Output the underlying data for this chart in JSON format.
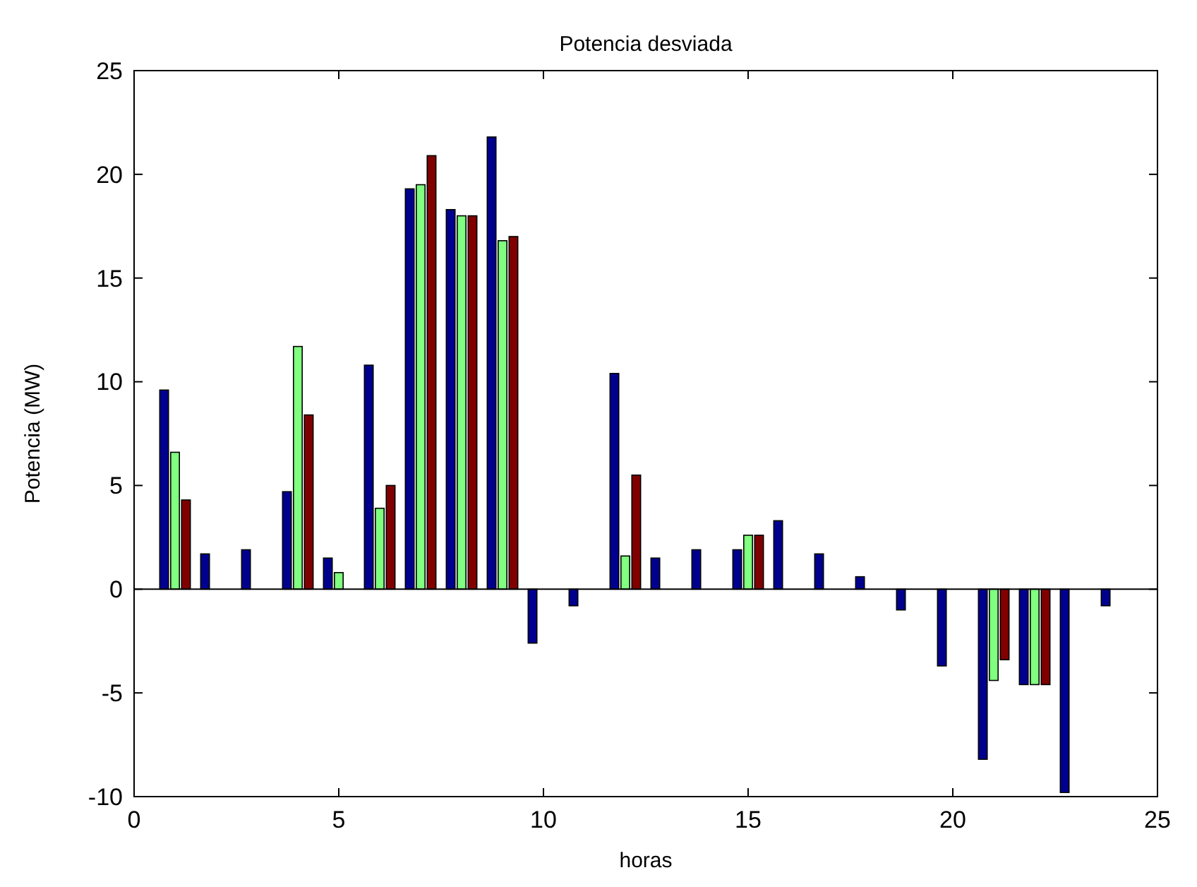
{
  "chart_data": {
    "type": "bar",
    "title": "Potencia desviada",
    "xlabel": "horas",
    "ylabel": "Potencia (MW)",
    "x": [
      1,
      2,
      3,
      4,
      5,
      6,
      7,
      8,
      9,
      10,
      11,
      12,
      13,
      14,
      15,
      16,
      17,
      18,
      19,
      20,
      21,
      22,
      23,
      24
    ],
    "series": [
      {
        "color": "#00008f",
        "values": [
          9.6,
          1.7,
          1.9,
          4.7,
          1.5,
          10.8,
          19.3,
          18.3,
          21.8,
          -2.6,
          -0.8,
          10.4,
          1.5,
          1.9,
          1.9,
          3.3,
          1.7,
          0.6,
          -1.0,
          -3.7,
          -8.2,
          -4.6,
          -9.8,
          -0.8
        ]
      },
      {
        "color": "#80ff80",
        "values": [
          6.6,
          0,
          0,
          11.7,
          0.8,
          3.9,
          19.5,
          18.0,
          16.8,
          0,
          0,
          1.6,
          0,
          0,
          2.6,
          0,
          0,
          0,
          0,
          0,
          -4.4,
          -4.6,
          0,
          0
        ]
      },
      {
        "color": "#800000",
        "values": [
          4.3,
          0,
          0,
          8.4,
          0,
          5.0,
          20.9,
          18.0,
          17.0,
          0,
          0,
          5.5,
          0,
          0,
          2.6,
          0,
          0,
          0,
          0,
          0,
          -3.4,
          -4.6,
          0,
          0
        ]
      }
    ],
    "xlim": [
      0,
      25
    ],
    "xticks": [
      0,
      5,
      10,
      15,
      20,
      25
    ],
    "ylim": [
      -10,
      25
    ],
    "yticks": [
      -10,
      -5,
      0,
      5,
      10,
      15,
      20,
      25
    ]
  }
}
